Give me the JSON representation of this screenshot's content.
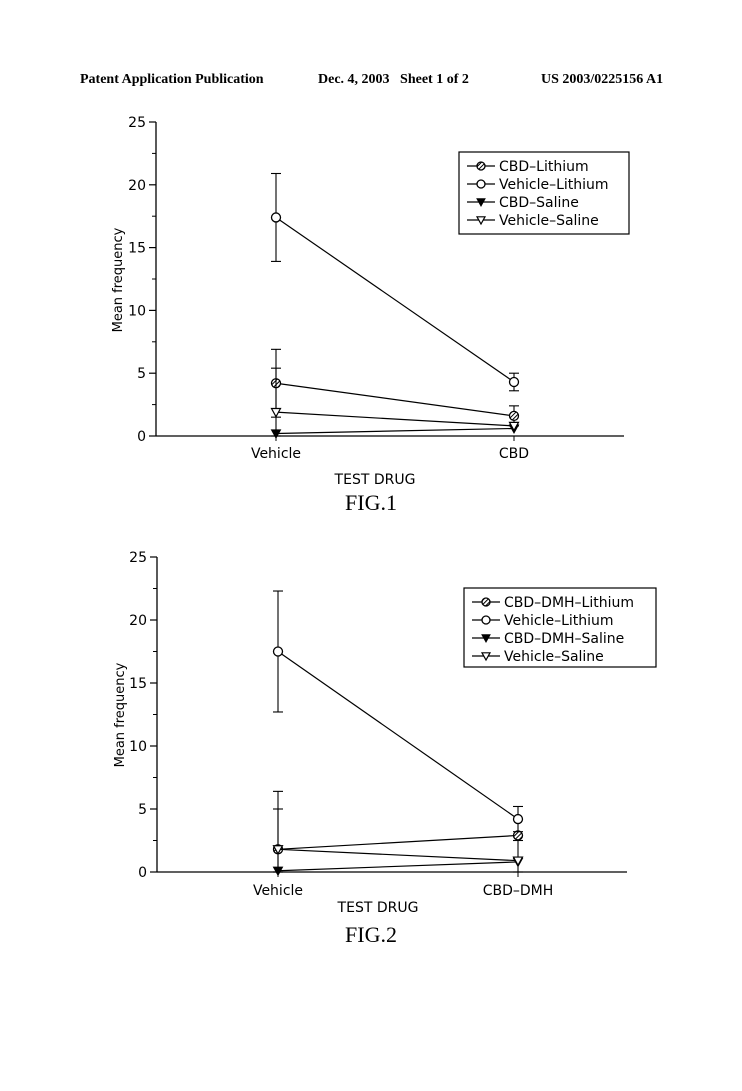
{
  "header": {
    "publication": "Patent Application Publication",
    "date_sheet": "Dec. 4, 2003   Sheet 1 of 2",
    "number": "US 2003/0225156 A1"
  },
  "chart_data": [
    {
      "type": "line",
      "caption": "FIG.1",
      "xlabel": "TEST DRUG",
      "ylabel": "Mean frequency",
      "categories": [
        "Vehicle",
        "CBD"
      ],
      "ylim": [
        0,
        25
      ],
      "yticks": [
        0,
        5,
        10,
        15,
        20,
        25
      ],
      "legend_position": "top-right",
      "grid": false,
      "series": [
        {
          "name": "CBD–Lithium",
          "marker": "circle-hatched",
          "values": [
            4.2,
            1.6
          ],
          "errors": [
            2.7,
            0.8
          ]
        },
        {
          "name": "Vehicle–Lithium",
          "marker": "circle-open",
          "values": [
            17.4,
            4.3
          ],
          "errors": [
            3.5,
            0.7
          ]
        },
        {
          "name": "CBD–Saline",
          "marker": "triangle-filled",
          "values": [
            0.2,
            0.6
          ],
          "errors": [
            0,
            0
          ]
        },
        {
          "name": "Vehicle–Saline",
          "marker": "triangle-open",
          "values": [
            1.9,
            0.8
          ],
          "errors": [
            3.5,
            0
          ]
        }
      ]
    },
    {
      "type": "line",
      "caption": "FIG.2",
      "xlabel": "TEST DRUG",
      "ylabel": "Mean frequency",
      "categories": [
        "Vehicle",
        "CBD–DMH"
      ],
      "ylim": [
        0,
        25
      ],
      "yticks": [
        0,
        5,
        10,
        15,
        20,
        25
      ],
      "legend_position": "top-right",
      "grid": false,
      "series": [
        {
          "name": "CBD–DMH–Lithium",
          "marker": "circle-hatched",
          "values": [
            1.8,
            2.9
          ],
          "errors": [
            4.6,
            0
          ]
        },
        {
          "name": "Vehicle–Lithium",
          "marker": "circle-open",
          "values": [
            17.5,
            4.2
          ],
          "errors": [
            4.8,
            1.0
          ]
        },
        {
          "name": "CBD–DMH–Saline",
          "marker": "triangle-filled",
          "values": [
            0.1,
            0.8
          ],
          "errors": [
            0,
            0
          ]
        },
        {
          "name": "Vehicle–Saline",
          "marker": "triangle-open",
          "values": [
            1.8,
            0.9
          ],
          "errors": [
            3.2,
            1.6
          ]
        }
      ]
    }
  ]
}
